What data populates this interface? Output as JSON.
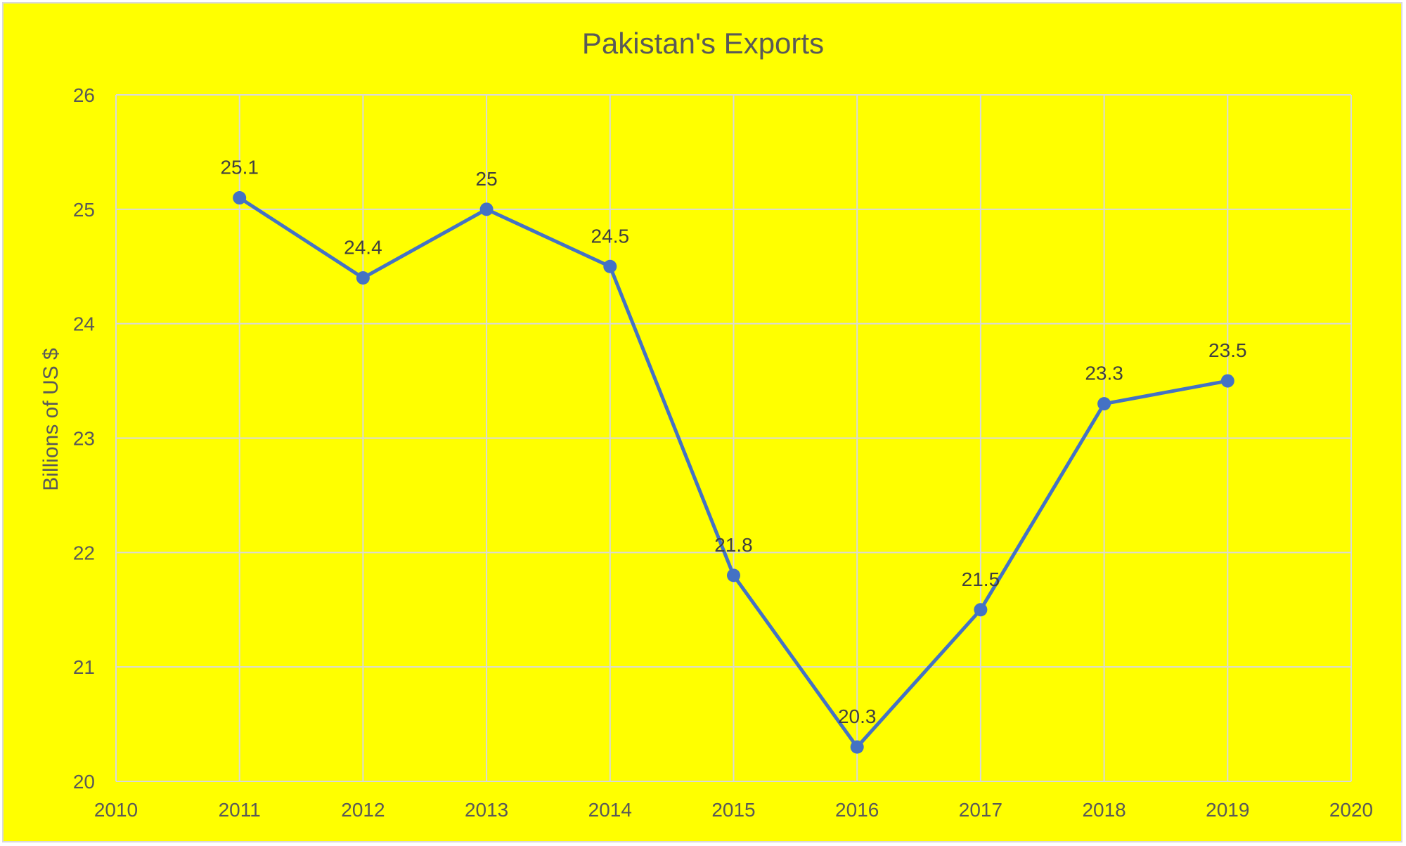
{
  "chart_data": {
    "type": "line",
    "title": "Pakistan's Exports",
    "xlabel": "",
    "ylabel": "Billions of US $",
    "x": [
      2011,
      2012,
      2013,
      2014,
      2015,
      2016,
      2017,
      2018,
      2019
    ],
    "values": [
      25.1,
      24.4,
      25,
      24.5,
      21.8,
      20.3,
      21.5,
      23.3,
      23.5
    ],
    "data_labels": [
      "25.1",
      "24.4",
      "25",
      "24.5",
      "21.8",
      "20.3",
      "21.5",
      "23.3",
      "23.5"
    ],
    "xlim": [
      2010,
      2020
    ],
    "ylim": [
      20,
      26
    ],
    "x_ticks": [
      "2010",
      "2011",
      "2012",
      "2013",
      "2014",
      "2015",
      "2016",
      "2017",
      "2018",
      "2019",
      "2020"
    ],
    "y_ticks": [
      "20",
      "21",
      "22",
      "23",
      "24",
      "25",
      "26"
    ],
    "grid": true,
    "legend": "none",
    "colors": {
      "background": "#ffff00",
      "line": "#4472c4",
      "grid": "#d9d9d9",
      "text": "#595959"
    }
  }
}
